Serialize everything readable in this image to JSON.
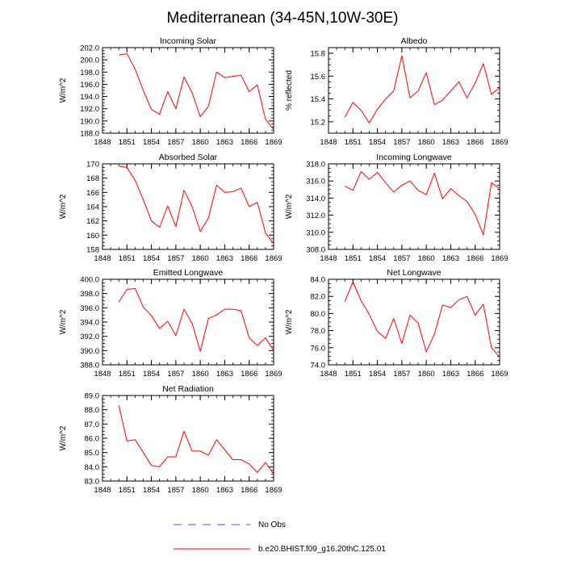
{
  "title": "Mediterranean (34-45N,10W-30E)",
  "colors": {
    "model": "#ff0000",
    "obs": "#4a4adf",
    "axis": "#000000"
  },
  "legend": {
    "obs_label": "No Obs",
    "model_label": "b.e20.BHIST.f09_g16.20thC.125.01"
  },
  "chart_data": [
    {
      "type": "line",
      "title": "Incoming Solar",
      "ylabel": "W/m^2",
      "xlim": [
        1848,
        1869
      ],
      "ylim": [
        188,
        202
      ],
      "xticks": [
        "1848",
        "1851",
        "1854",
        "1857",
        "1860",
        "1863",
        "1866",
        "1869"
      ],
      "yticks": [
        "188.0",
        "190.0",
        "192.0",
        "194.0",
        "196.0",
        "198.0",
        "200.0",
        "202.0"
      ],
      "series": [
        {
          "name": "b.e20.BHIST.f09_g16.20thC.125.01",
          "x": [
            1850,
            1851,
            1852,
            1853,
            1854,
            1855,
            1856,
            1857,
            1858,
            1859,
            1860,
            1861,
            1862,
            1863,
            1864,
            1865,
            1866,
            1867,
            1868,
            1869
          ],
          "values": [
            200.8,
            201.0,
            198.5,
            195.0,
            191.9,
            191.1,
            194.8,
            192.0,
            197.2,
            194.6,
            190.7,
            192.4,
            198.0,
            197.1,
            197.3,
            197.5,
            194.8,
            195.9,
            190.3,
            188.6
          ]
        }
      ]
    },
    {
      "type": "line",
      "title": "Albedo",
      "ylabel": "% reflected",
      "xlim": [
        1848,
        1869
      ],
      "ylim": [
        15.1,
        15.85
      ],
      "xticks": [
        "1848",
        "1851",
        "1854",
        "1857",
        "1860",
        "1863",
        "1866",
        "1869"
      ],
      "yticks": [
        "15.2",
        "15.4",
        "15.6",
        "15.8"
      ],
      "series": [
        {
          "name": "b.e20.BHIST.f09_g16.20thC.125.01",
          "x": [
            1850,
            1851,
            1852,
            1853,
            1854,
            1855,
            1856,
            1857,
            1858,
            1859,
            1860,
            1861,
            1862,
            1863,
            1864,
            1865,
            1866,
            1867,
            1868,
            1869
          ],
          "values": [
            15.24,
            15.37,
            15.3,
            15.19,
            15.31,
            15.4,
            15.47,
            15.78,
            15.41,
            15.47,
            15.63,
            15.35,
            15.39,
            15.47,
            15.55,
            15.41,
            15.54,
            15.71,
            15.44,
            15.5
          ]
        }
      ]
    },
    {
      "type": "line",
      "title": "Absorbed Solar",
      "ylabel": "W/m^2",
      "xlim": [
        1848,
        1869
      ],
      "ylim": [
        158,
        170
      ],
      "xticks": [
        "1848",
        "1851",
        "1854",
        "1857",
        "1860",
        "1863",
        "1866",
        "1869"
      ],
      "yticks": [
        "158",
        "160",
        "162",
        "164",
        "166",
        "168",
        "170"
      ],
      "series": [
        {
          "name": "b.e20.BHIST.f09_g16.20thC.125.01",
          "x": [
            1850,
            1851,
            1852,
            1853,
            1854,
            1855,
            1856,
            1857,
            1858,
            1859,
            1860,
            1861,
            1862,
            1863,
            1864,
            1865,
            1866,
            1867,
            1868,
            1869
          ],
          "values": [
            169.7,
            169.5,
            167.7,
            165.0,
            162.0,
            161.1,
            164.1,
            161.2,
            166.3,
            164.0,
            160.5,
            162.4,
            167.0,
            166.0,
            166.1,
            166.6,
            164.0,
            164.6,
            160.3,
            158.8
          ]
        }
      ]
    },
    {
      "type": "line",
      "title": "Incoming Longwave",
      "ylabel": "W/m^2",
      "xlim": [
        1848,
        1869
      ],
      "ylim": [
        308,
        318
      ],
      "xticks": [
        "1848",
        "1851",
        "1854",
        "1857",
        "1860",
        "1863",
        "1866",
        "1869"
      ],
      "yticks": [
        "308.0",
        "310.0",
        "312.0",
        "314.0",
        "316.0",
        "318.0"
      ],
      "series": [
        {
          "name": "b.e20.BHIST.f09_g16.20thC.125.01",
          "x": [
            1850,
            1851,
            1852,
            1853,
            1854,
            1855,
            1856,
            1857,
            1858,
            1859,
            1860,
            1861,
            1862,
            1863,
            1864,
            1865,
            1866,
            1867,
            1868,
            1869
          ],
          "values": [
            315.4,
            314.9,
            317.1,
            316.2,
            317.0,
            315.8,
            314.7,
            315.5,
            316.0,
            314.9,
            314.4,
            316.9,
            313.9,
            315.1,
            314.3,
            313.6,
            312.1,
            309.7,
            315.8,
            315.1
          ]
        }
      ]
    },
    {
      "type": "line",
      "title": "Emitted Longwave",
      "ylabel": "W/m^2",
      "xlim": [
        1848,
        1869
      ],
      "ylim": [
        388,
        400
      ],
      "xticks": [
        "1848",
        "1851",
        "1854",
        "1857",
        "1860",
        "1863",
        "1866",
        "1869"
      ],
      "yticks": [
        "388.0",
        "390.0",
        "392.0",
        "394.0",
        "396.0",
        "398.0",
        "400.0"
      ],
      "series": [
        {
          "name": "b.e20.BHIST.f09_g16.20thC.125.01",
          "x": [
            1850,
            1851,
            1852,
            1853,
            1854,
            1855,
            1856,
            1857,
            1858,
            1859,
            1860,
            1861,
            1862,
            1863,
            1864,
            1865,
            1866,
            1867,
            1868,
            1869
          ],
          "values": [
            396.8,
            398.6,
            398.7,
            396.1,
            394.9,
            393.1,
            394.1,
            392.1,
            395.8,
            393.8,
            389.9,
            394.5,
            395.0,
            395.8,
            395.8,
            395.6,
            391.8,
            390.7,
            391.8,
            390.0
          ]
        }
      ]
    },
    {
      "type": "line",
      "title": "Net Longwave",
      "ylabel": "W/m^2",
      "xlim": [
        1848,
        1869
      ],
      "ylim": [
        74,
        84
      ],
      "xticks": [
        "1848",
        "1851",
        "1854",
        "1857",
        "1860",
        "1863",
        "1866",
        "1869"
      ],
      "yticks": [
        "74.0",
        "76.0",
        "78.0",
        "80.0",
        "82.0",
        "84.0"
      ],
      "series": [
        {
          "name": "b.e20.BHIST.f09_g16.20thC.125.01",
          "x": [
            1850,
            1851,
            1852,
            1853,
            1854,
            1855,
            1856,
            1857,
            1858,
            1859,
            1860,
            1861,
            1862,
            1863,
            1864,
            1865,
            1866,
            1867,
            1868,
            1869
          ],
          "values": [
            81.4,
            83.7,
            81.5,
            79.9,
            77.9,
            77.1,
            79.4,
            76.5,
            79.8,
            78.9,
            75.5,
            77.6,
            81.0,
            80.7,
            81.6,
            82.0,
            79.8,
            81.1,
            76.0,
            74.9
          ]
        }
      ]
    },
    {
      "type": "line",
      "title": "Net Radiation",
      "ylabel": "W/m^2",
      "xlim": [
        1848,
        1869
      ],
      "ylim": [
        83,
        89
      ],
      "xticks": [
        "1848",
        "1851",
        "1854",
        "1857",
        "1860",
        "1863",
        "1866",
        "1869"
      ],
      "yticks": [
        "83.0",
        "84.0",
        "85.0",
        "86.0",
        "87.0",
        "88.0",
        "89.0"
      ],
      "series": [
        {
          "name": "b.e20.BHIST.f09_g16.20thC.125.01",
          "x": [
            1850,
            1851,
            1852,
            1853,
            1854,
            1855,
            1856,
            1857,
            1858,
            1859,
            1860,
            1861,
            1862,
            1863,
            1864,
            1865,
            1866,
            1867,
            1868,
            1869
          ],
          "values": [
            88.3,
            85.8,
            85.9,
            85.0,
            84.1,
            84.0,
            84.7,
            84.7,
            86.5,
            85.1,
            85.1,
            84.8,
            85.9,
            85.2,
            84.5,
            84.5,
            84.2,
            83.6,
            84.3,
            83.5
          ]
        }
      ]
    }
  ]
}
